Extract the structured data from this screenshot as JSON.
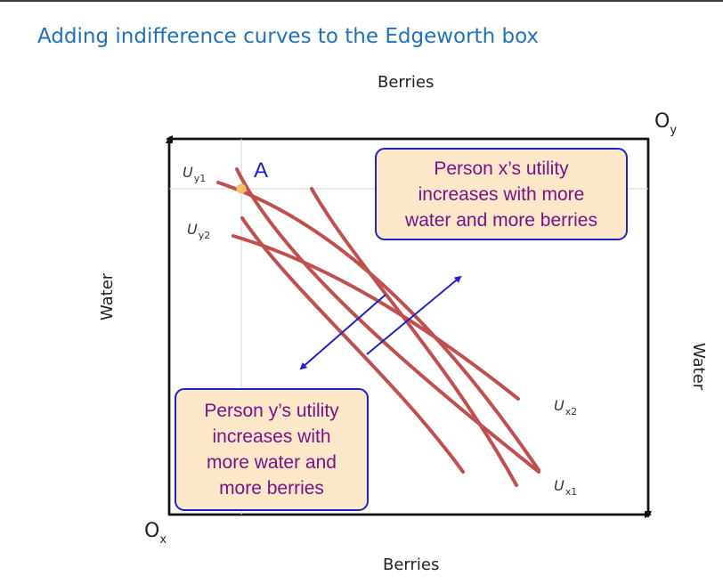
{
  "title": "Adding indifference curves to the Edgeworth box",
  "axes": {
    "top": "Berries",
    "bottom": "Berries",
    "left": "Water",
    "right": "Water"
  },
  "origins": {
    "x": {
      "main": "O",
      "sub": "x"
    },
    "y": {
      "main": "O",
      "sub": "y"
    }
  },
  "point_a": "A",
  "curves": {
    "uy1": {
      "main": "U",
      "sub": "y1"
    },
    "uy2": {
      "main": "U",
      "sub": "y2"
    },
    "ux2": {
      "main": "U",
      "sub": "x2"
    },
    "ux1": {
      "main": "U",
      "sub": "x1"
    }
  },
  "callouts": {
    "x": [
      "Person x’s utility",
      "increases with more",
      "water and more berries"
    ],
    "y": [
      "Person y’s utility",
      "increases with",
      "more water and",
      "more berries"
    ]
  },
  "colors": {
    "title": "#1f72b8",
    "curve": "#c0504d",
    "arrow": "#1e22c8",
    "point": "#f5c063",
    "callout_fill": "#fce8c8",
    "callout_text": "#7a138a"
  }
}
